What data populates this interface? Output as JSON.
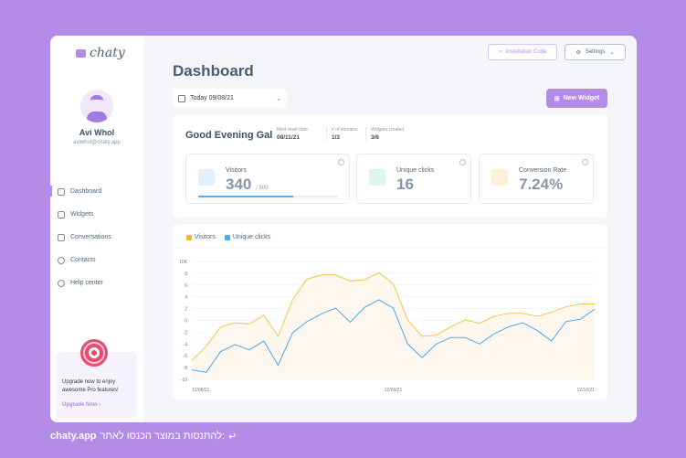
{
  "brand": "chaty",
  "user": {
    "name": "Avi Whol",
    "email": "aviwhol@chaty.app"
  },
  "nav": [
    {
      "label": "Dashboard",
      "icon": "home-icon"
    },
    {
      "label": "Widgets",
      "icon": "widget-icon"
    },
    {
      "label": "Conversations",
      "icon": "chat-icon"
    },
    {
      "label": "Contacts",
      "icon": "contacts-icon"
    },
    {
      "label": "Help center",
      "icon": "help-icon"
    }
  ],
  "upgrade": {
    "text": "Upgrade now to enjoy awesome Pro features!",
    "link": "Upgrade Now"
  },
  "header": {
    "title": "Dashboard",
    "date": "Today 09/08/21",
    "install": "Installation Code",
    "settings": "Settings",
    "new_widget": "New Widget"
  },
  "summary": {
    "greeting": "Good Evening Gal",
    "meta": [
      {
        "label": "Next reset date",
        "value": "08/11/21"
      },
      {
        "label": "# of domains",
        "value": "1/3"
      },
      {
        "label": "Widgets created",
        "value": "3/6"
      }
    ]
  },
  "cards": [
    {
      "label": "Visitors",
      "value": "340",
      "sub": "/ 500",
      "progress": 0.68
    },
    {
      "label": "Unique clicks",
      "value": "16"
    },
    {
      "label": "Conversion Rate",
      "value": "7.24%"
    }
  ],
  "chart_data": {
    "type": "line",
    "legend": [
      "Visitors",
      "Unique clicks"
    ],
    "colors": {
      "Visitors": "#f5b82e",
      "Unique clicks": "#4aa8f0"
    },
    "y_ticks": [
      "10K",
      "8",
      "6",
      "4",
      "2",
      "0",
      "-2",
      "-4",
      "-6",
      "-8",
      "-10"
    ],
    "ylim": [
      -10,
      10
    ],
    "x_labels": [
      "12/08/21",
      "12/09/21",
      "12/10/21"
    ],
    "series": [
      {
        "name": "Visitors",
        "values": [
          -6.8,
          -4.4,
          -1.1,
          -0.4,
          -0.6,
          0.9,
          -2.7,
          3.5,
          7.0,
          7.7,
          7.7,
          6.7,
          6.9,
          8.1,
          6.2,
          0.1,
          -2.7,
          -2.5,
          -1.1,
          0.1,
          -0.5,
          0.7,
          1.2,
          1.2,
          0.7,
          1.4,
          2.3,
          2.8,
          2.8
        ]
      },
      {
        "name": "Unique clicks",
        "values": [
          -8.4,
          -8.8,
          -5.3,
          -4.1,
          -5.0,
          -3.5,
          -7.6,
          -2.1,
          -0.2,
          1.1,
          2.1,
          -0.3,
          2.2,
          3.5,
          2.1,
          -4.0,
          -6.3,
          -4.0,
          -2.9,
          -2.9,
          -4.0,
          -2.3,
          -1.1,
          -0.4,
          -1.7,
          -3.5,
          -0.2,
          0.2,
          1.9
        ]
      }
    ]
  },
  "footer": {
    "site": "chaty.app",
    "text": "להתנסות במוצר הכנסו לאתר:"
  }
}
